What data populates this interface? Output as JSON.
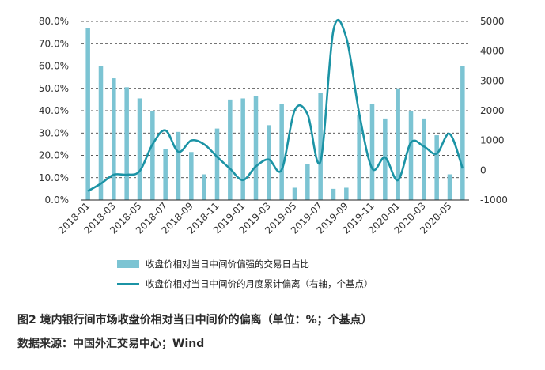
{
  "chart_data": {
    "type": "bar+line",
    "categories": [
      "2018-01",
      "2018-02",
      "2018-03",
      "2018-04",
      "2018-05",
      "2018-06",
      "2018-07",
      "2018-08",
      "2018-09",
      "2018-10",
      "2018-11",
      "2018-12",
      "2019-01",
      "2019-02",
      "2019-03",
      "2019-04",
      "2019-05",
      "2019-06",
      "2019-07",
      "2019-08",
      "2019-09",
      "2019-10",
      "2019-11",
      "2019-12",
      "2020-01",
      "2020-02",
      "2020-03",
      "2020-04",
      "2020-05",
      "2020-06"
    ],
    "x_tick_labels": [
      "2018-01",
      "2018-03",
      "2018-05",
      "2018-07",
      "2018-09",
      "2018-11",
      "2019-01",
      "2019-03",
      "2019-05",
      "2019-07",
      "2019-09",
      "2019-11",
      "2020-01",
      "2020-03",
      "2020-05"
    ],
    "series": [
      {
        "name": "收盘价相对当日中间价偏强的交易日占比",
        "type": "bar",
        "axis": "left",
        "color": "#7cc4d3",
        "values": [
          77,
          60,
          54.5,
          50.5,
          45.5,
          40,
          23,
          30.5,
          21.5,
          11.5,
          32,
          45,
          45.5,
          46.5,
          33.5,
          43,
          5.5,
          16,
          48,
          5,
          5.5,
          38,
          43,
          36.5,
          50,
          40,
          36.5,
          29,
          11.5,
          60
        ]
      },
      {
        "name": "收盘价相对当日中间价的月度累计偏离（右轴，个基点）",
        "type": "line",
        "axis": "right",
        "color": "#1b93a5",
        "values": [
          -700,
          -450,
          -150,
          -150,
          -30,
          870,
          1340,
          620,
          1000,
          870,
          450,
          50,
          -330,
          130,
          360,
          20,
          2010,
          1880,
          300,
          4700,
          4450,
          1900,
          60,
          430,
          -330,
          930,
          800,
          560,
          1220,
          60
        ]
      }
    ],
    "y_left": {
      "ticks": [
        "0.0%",
        "10.0%",
        "20.0%",
        "30.0%",
        "40.0%",
        "50.0%",
        "60.0%",
        "70.0%",
        "80.0%"
      ],
      "ylim": [
        0,
        80
      ]
    },
    "y_right": {
      "ticks": [
        "-1000",
        "0",
        "1000",
        "2000",
        "3000",
        "4000",
        "5000"
      ],
      "ylim": [
        -1000,
        5000
      ]
    },
    "grid": "horizontal-dashed",
    "legend_position": "bottom"
  },
  "caption": {
    "title": "图2  境内银行间市场收盘价相对当日中间价的偏离（单位：%；个基点）",
    "source": "数据来源：中国外汇交易中心；Wind"
  }
}
